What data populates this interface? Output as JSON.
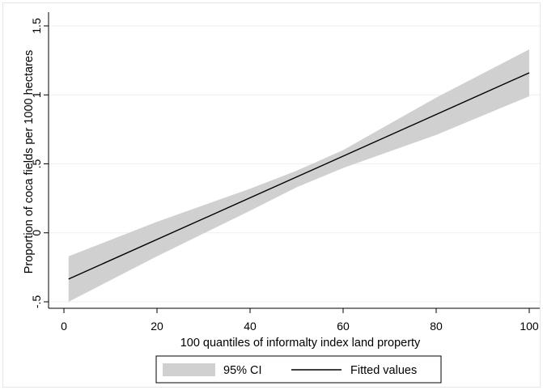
{
  "chart_data": {
    "type": "line",
    "xlabel": "100 quantiles of informalty index land property",
    "ylabel": "Proportion of coca fields per 1000 hectares",
    "xlim": [
      0,
      100
    ],
    "ylim": [
      -0.5,
      1.5
    ],
    "x_ticks": [
      0,
      20,
      40,
      60,
      80,
      100
    ],
    "y_ticks": [
      -0.5,
      0,
      0.5,
      1,
      1.5
    ],
    "x_tick_labels": [
      "0",
      "20",
      "40",
      "60",
      "80",
      "100"
    ],
    "y_tick_labels": [
      "-.5",
      "0",
      ".5",
      "1",
      "1.5"
    ],
    "grid": "horizontal",
    "legend_position": "bottom",
    "series": [
      {
        "name": "95% CI",
        "kind": "band",
        "color": "#d0d0d0",
        "x": [
          1,
          20,
          40,
          50,
          60,
          80,
          100
        ],
        "lower": [
          -0.5,
          -0.17,
          0.16,
          0.33,
          0.47,
          0.71,
          0.99
        ],
        "upper": [
          -0.17,
          0.08,
          0.32,
          0.45,
          0.6,
          0.98,
          1.33
        ]
      },
      {
        "name": "Fitted values",
        "kind": "line",
        "color": "#000000",
        "x": [
          1,
          100
        ],
        "y": [
          -0.335,
          1.16
        ]
      }
    ]
  }
}
